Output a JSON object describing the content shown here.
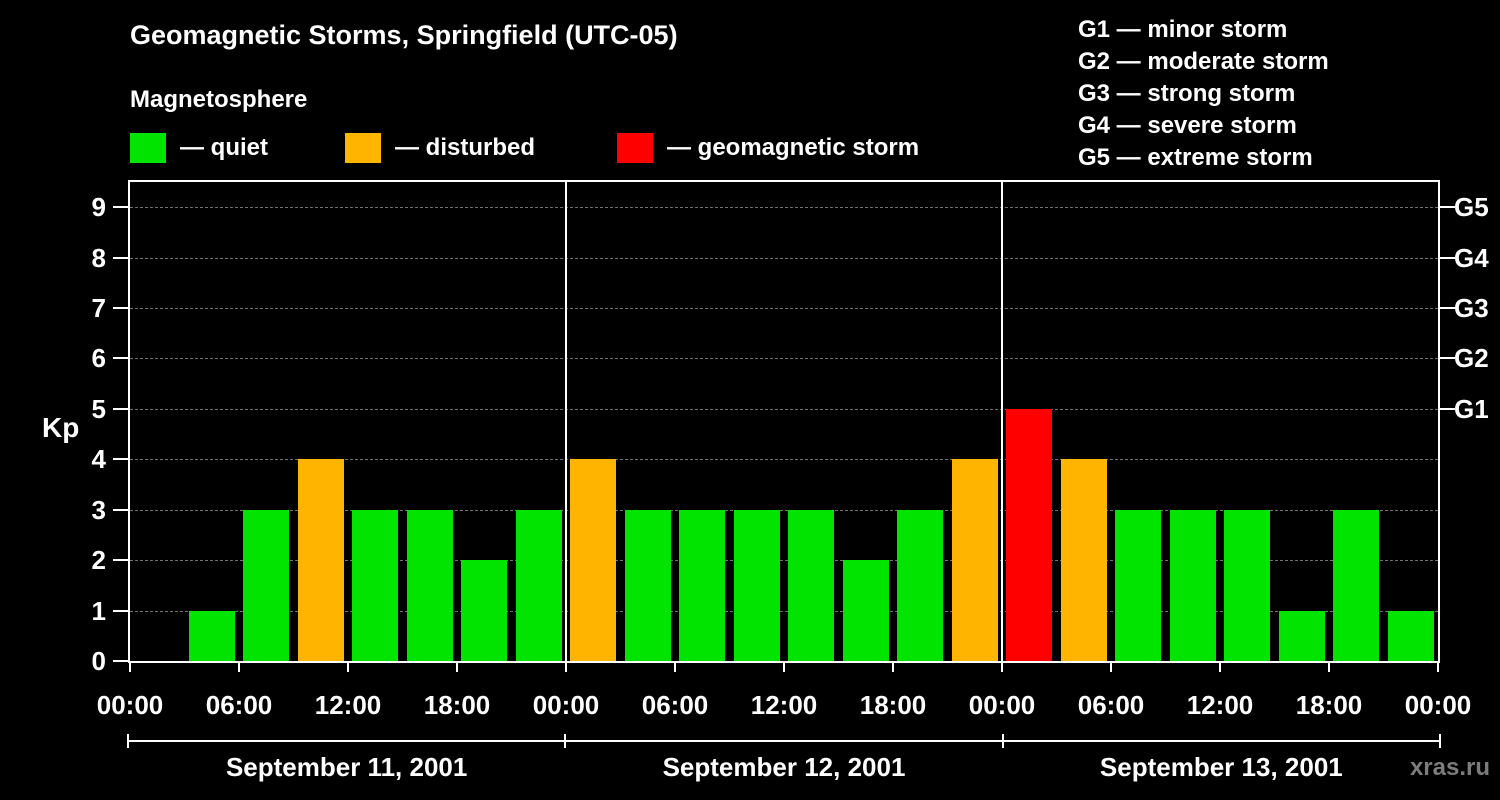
{
  "header": {
    "title": "Geomagnetic Storms, Springfield (UTC-05)",
    "subtitle": "Magnetosphere"
  },
  "bar_legend": [
    {
      "label": "— quiet",
      "color": "#00e400"
    },
    {
      "label": "— disturbed",
      "color": "#ffb400"
    },
    {
      "label": "— geomagnetic storm",
      "color": "#ff0000"
    }
  ],
  "storm_scale_legend": [
    "G1 — minor storm",
    "G2 — moderate storm",
    "G3 — strong storm",
    "G4 — severe storm",
    "G5 — extreme storm"
  ],
  "watermark": "xras.ru",
  "chart_data": {
    "type": "bar",
    "title": "Geomagnetic Storms, Springfield (UTC-05)",
    "ylabel": "Kp",
    "ylim": [
      0,
      9.5
    ],
    "y_ticks": [
      0,
      1,
      2,
      3,
      4,
      5,
      6,
      7,
      8,
      9
    ],
    "grid": "dashed horizontal line at each Kp level",
    "background": "#000000",
    "axis_color": "#ffffff",
    "right_axis": [
      {
        "label": "G1",
        "kp": 5
      },
      {
        "label": "G2",
        "kp": 6
      },
      {
        "label": "G3",
        "kp": 7
      },
      {
        "label": "G4",
        "kp": 8
      },
      {
        "label": "G5",
        "kp": 9
      }
    ],
    "x_tick_labels": [
      "00:00",
      "06:00",
      "12:00",
      "18:00",
      "00:00",
      "06:00",
      "12:00",
      "18:00",
      "00:00",
      "06:00",
      "12:00",
      "18:00",
      "00:00"
    ],
    "bar_interval_hours": 3,
    "days": [
      {
        "date": "September 11, 2001",
        "values": [
          0,
          1,
          3,
          4,
          3,
          3,
          2,
          3
        ]
      },
      {
        "date": "September 12, 2001",
        "values": [
          4,
          3,
          3,
          3,
          3,
          2,
          3,
          4
        ]
      },
      {
        "date": "September 13, 2001",
        "values": [
          5,
          4,
          3,
          3,
          3,
          1,
          3,
          1
        ]
      }
    ],
    "colors": {
      "quiet": "#00e400",
      "disturbed": "#ffb400",
      "storm": "#ff0000"
    },
    "color_rule": {
      "quiet": "Kp<=3",
      "disturbed": "Kp=4",
      "storm": "Kp>=5"
    }
  }
}
